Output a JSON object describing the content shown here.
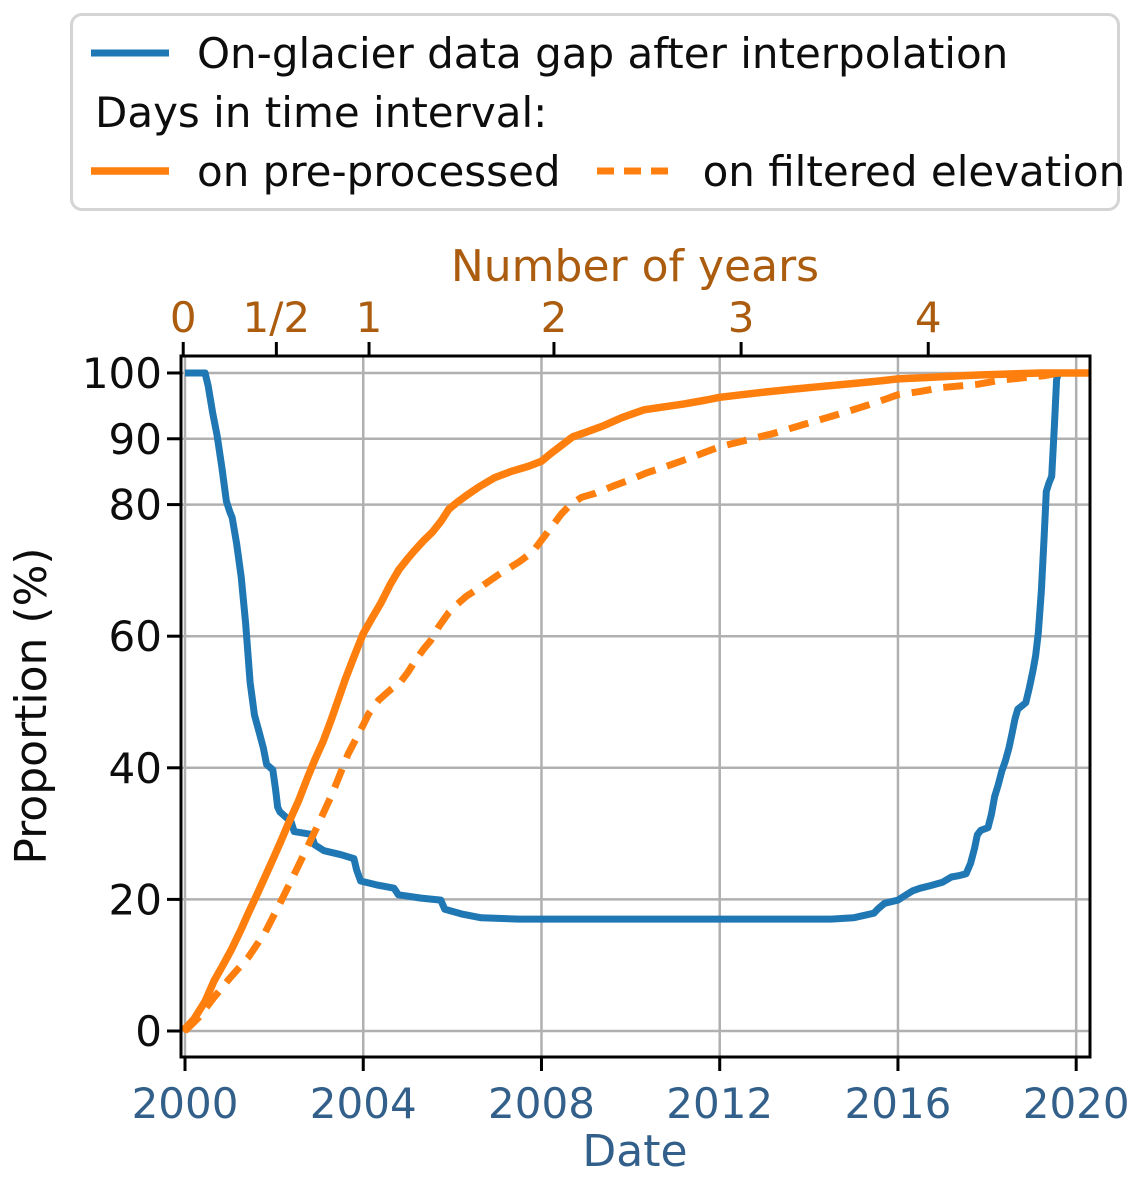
{
  "legend": {
    "items": [
      {
        "label": "On-glacier data gap after interpolation",
        "color": "#1f77b4",
        "line": "solid"
      },
      {
        "label": "Days in time interval:",
        "color": null,
        "line": "none"
      },
      {
        "label": "on pre-processed",
        "color": "#ff7f0e",
        "line": "solid"
      },
      {
        "label": "on filtered elevation",
        "color": "#ff7f0e",
        "line": "dashed"
      }
    ]
  },
  "chart_data": {
    "type": "line",
    "title": "",
    "xlabel": "Date",
    "ylabel": "Proportion (%)",
    "top_xlabel": "Number of years",
    "grid": true,
    "grid_color": "#b0b0b0",
    "frame_color": "#000000",
    "x_axis_label_color": "#33608a",
    "top_axis_label_color": "#ab5c0e",
    "y_axis_label_color": "#0d0d0d",
    "legend_position": "upper left, above axes",
    "x_range": [
      1999.91,
      2020.31
    ],
    "y_range": [
      -3.95,
      102.58
    ],
    "x_ticks": [
      {
        "label": "2000",
        "year": 2000
      },
      {
        "label": "2004",
        "year": 2004
      },
      {
        "label": "2008",
        "year": 2008
      },
      {
        "label": "2012",
        "year": 2012
      },
      {
        "label": "2016",
        "year": 2016
      },
      {
        "label": "2020",
        "year": 2020
      }
    ],
    "y_ticks": [
      {
        "label": "0",
        "value": 0
      },
      {
        "label": "20",
        "value": 20
      },
      {
        "label": "40",
        "value": 40
      },
      {
        "label": "60",
        "value": 60
      },
      {
        "label": "80",
        "value": 80
      },
      {
        "label": "90",
        "value": 90
      },
      {
        "label": "100",
        "value": 100
      }
    ],
    "top_ticks": [
      {
        "label": "0",
        "year": 1999.96
      },
      {
        "label": "1/2",
        "year": 2002.05
      },
      {
        "label": "1",
        "year": 2004.13
      },
      {
        "label": "2",
        "year": 2008.28
      },
      {
        "label": "3",
        "year": 2012.48
      },
      {
        "label": "4",
        "year": 2016.68
      }
    ],
    "series": [
      {
        "name": "On-glacier data gap after interpolation",
        "color": "#1f77b4",
        "dash": null,
        "width": 7,
        "points": [
          [
            2000.0,
            100
          ],
          [
            2000.45,
            100
          ],
          [
            2000.52,
            98
          ],
          [
            2000.62,
            94
          ],
          [
            2000.72,
            90.5
          ],
          [
            2000.83,
            85.5
          ],
          [
            2000.93,
            80.5
          ],
          [
            2001.0,
            79
          ],
          [
            2001.06,
            78
          ],
          [
            2001.16,
            74
          ],
          [
            2001.26,
            69
          ],
          [
            2001.36,
            62
          ],
          [
            2001.46,
            53
          ],
          [
            2001.56,
            48
          ],
          [
            2001.66,
            45.5
          ],
          [
            2001.76,
            43
          ],
          [
            2001.83,
            40.5
          ],
          [
            2001.97,
            39.7
          ],
          [
            2002.03,
            36.8
          ],
          [
            2002.08,
            34
          ],
          [
            2002.13,
            33.3
          ],
          [
            2002.38,
            31.8
          ],
          [
            2002.45,
            30.3
          ],
          [
            2002.83,
            29.9
          ],
          [
            2002.91,
            28.3
          ],
          [
            2003.12,
            27.4
          ],
          [
            2003.5,
            26.8
          ],
          [
            2003.79,
            26.2
          ],
          [
            2003.85,
            24.5
          ],
          [
            2003.94,
            22.8
          ],
          [
            2004.3,
            22.2
          ],
          [
            2004.69,
            21.7
          ],
          [
            2004.79,
            20.7
          ],
          [
            2005.3,
            20.2
          ],
          [
            2005.74,
            19.9
          ],
          [
            2005.83,
            18.5
          ],
          [
            2006.2,
            17.8
          ],
          [
            2006.65,
            17.2
          ],
          [
            2007.5,
            17
          ],
          [
            2011.0,
            17
          ],
          [
            2014.5,
            17
          ],
          [
            2015.0,
            17.2
          ],
          [
            2015.46,
            17.9
          ],
          [
            2015.56,
            18.6
          ],
          [
            2015.7,
            19.4
          ],
          [
            2016.0,
            19.9
          ],
          [
            2016.16,
            20.6
          ],
          [
            2016.33,
            21.3
          ],
          [
            2016.5,
            21.7
          ],
          [
            2016.73,
            22.1
          ],
          [
            2017.0,
            22.6
          ],
          [
            2017.2,
            23.4
          ],
          [
            2017.36,
            23.6
          ],
          [
            2017.53,
            23.9
          ],
          [
            2017.63,
            25.5
          ],
          [
            2017.72,
            27.8
          ],
          [
            2017.78,
            29.8
          ],
          [
            2017.86,
            30.5
          ],
          [
            2018.02,
            30.9
          ],
          [
            2018.1,
            33
          ],
          [
            2018.17,
            35.6
          ],
          [
            2018.25,
            37.4
          ],
          [
            2018.33,
            39.5
          ],
          [
            2018.41,
            41
          ],
          [
            2018.49,
            43
          ],
          [
            2018.56,
            45.2
          ],
          [
            2018.63,
            47.5
          ],
          [
            2018.69,
            48.9
          ],
          [
            2018.78,
            49.4
          ],
          [
            2018.87,
            49.9
          ],
          [
            2018.95,
            52.2
          ],
          [
            2019.03,
            54.8
          ],
          [
            2019.09,
            57
          ],
          [
            2019.15,
            60.5
          ],
          [
            2019.22,
            67
          ],
          [
            2019.28,
            75
          ],
          [
            2019.33,
            82
          ],
          [
            2019.39,
            83.3
          ],
          [
            2019.45,
            84.3
          ],
          [
            2019.51,
            92
          ],
          [
            2019.56,
            99
          ],
          [
            2019.6,
            100
          ],
          [
            2020.31,
            100
          ]
        ]
      },
      {
        "name": "Days in time interval: on pre-processed",
        "color": "#ff7f0e",
        "dash": null,
        "width": 7.5,
        "points": [
          [
            1999.95,
            0
          ],
          [
            2000.2,
            1.8
          ],
          [
            2000.45,
            4.5
          ],
          [
            2000.65,
            7.6
          ],
          [
            2000.85,
            10
          ],
          [
            2001.05,
            12.5
          ],
          [
            2001.25,
            15.3
          ],
          [
            2001.42,
            17.9
          ],
          [
            2001.6,
            20.5
          ],
          [
            2001.8,
            23.5
          ],
          [
            2002.0,
            26.5
          ],
          [
            2002.16,
            29
          ],
          [
            2002.35,
            32
          ],
          [
            2002.55,
            35
          ],
          [
            2002.75,
            38.5
          ],
          [
            2002.92,
            41.3
          ],
          [
            2003.1,
            44
          ],
          [
            2003.28,
            47.3
          ],
          [
            2003.42,
            50
          ],
          [
            2003.6,
            53.5
          ],
          [
            2003.8,
            57
          ],
          [
            2004.0,
            60.4
          ],
          [
            2004.2,
            62.8
          ],
          [
            2004.4,
            65.1
          ],
          [
            2004.6,
            67.8
          ],
          [
            2004.8,
            70.1
          ],
          [
            2005.0,
            71.8
          ],
          [
            2005.15,
            73
          ],
          [
            2005.35,
            74.5
          ],
          [
            2005.55,
            75.8
          ],
          [
            2005.75,
            77.5
          ],
          [
            2005.92,
            79.3
          ],
          [
            2006.1,
            80.3
          ],
          [
            2006.3,
            81.3
          ],
          [
            2006.6,
            82.7
          ],
          [
            2006.95,
            84.1
          ],
          [
            2007.3,
            85
          ],
          [
            2007.7,
            85.8
          ],
          [
            2008.0,
            86.6
          ],
          [
            2008.2,
            87.7
          ],
          [
            2008.45,
            89
          ],
          [
            2008.7,
            90.3
          ],
          [
            2009.0,
            91
          ],
          [
            2009.4,
            92
          ],
          [
            2009.8,
            93.2
          ],
          [
            2010.3,
            94.4
          ],
          [
            2010.7,
            94.8
          ],
          [
            2011.2,
            95.3
          ],
          [
            2011.7,
            95.9
          ],
          [
            2012.0,
            96.3
          ],
          [
            2012.5,
            96.7
          ],
          [
            2013.0,
            97.1
          ],
          [
            2013.6,
            97.5
          ],
          [
            2014.2,
            97.9
          ],
          [
            2015.0,
            98.4
          ],
          [
            2015.6,
            98.8
          ],
          [
            2016.0,
            99.1
          ],
          [
            2016.6,
            99.3
          ],
          [
            2017.2,
            99.5
          ],
          [
            2017.8,
            99.7
          ],
          [
            2018.5,
            99.85
          ],
          [
            2019.2,
            100
          ],
          [
            2020.31,
            100
          ]
        ]
      },
      {
        "name": "Days in time interval: on filtered elevation",
        "color": "#ff7f0e",
        "dash": [
          20,
          12
        ],
        "width": 7,
        "points": [
          [
            2000.0,
            0
          ],
          [
            2000.3,
            2
          ],
          [
            2000.65,
            5.1
          ],
          [
            2001.0,
            8
          ],
          [
            2001.42,
            11.2
          ],
          [
            2001.8,
            15
          ],
          [
            2002.16,
            19.8
          ],
          [
            2002.5,
            24.5
          ],
          [
            2002.92,
            30.4
          ],
          [
            2003.3,
            36
          ],
          [
            2003.66,
            42.1
          ],
          [
            2004.0,
            46.5
          ],
          [
            2004.12,
            48.2
          ],
          [
            2004.35,
            50.3
          ],
          [
            2004.6,
            51.8
          ],
          [
            2004.82,
            52.9
          ],
          [
            2005.0,
            54.5
          ],
          [
            2005.17,
            56.3
          ],
          [
            2005.35,
            58
          ],
          [
            2005.52,
            59.4
          ],
          [
            2005.7,
            61.5
          ],
          [
            2005.92,
            63.6
          ],
          [
            2006.1,
            64.8
          ],
          [
            2006.3,
            66
          ],
          [
            2006.62,
            67.4
          ],
          [
            2007.0,
            69.2
          ],
          [
            2007.5,
            71.3
          ],
          [
            2007.8,
            72.8
          ],
          [
            2008.0,
            74.6
          ],
          [
            2008.25,
            76.8
          ],
          [
            2008.45,
            78.6
          ],
          [
            2008.65,
            80
          ],
          [
            2008.9,
            81.1
          ],
          [
            2009.2,
            81.7
          ],
          [
            2009.6,
            82.8
          ],
          [
            2010.0,
            83.8
          ],
          [
            2010.35,
            84.8
          ],
          [
            2010.8,
            85.8
          ],
          [
            2011.3,
            87
          ],
          [
            2012.0,
            88.8
          ],
          [
            2012.6,
            89.8
          ],
          [
            2013.2,
            90.8
          ],
          [
            2014.0,
            92.4
          ],
          [
            2014.8,
            94
          ],
          [
            2015.5,
            95.5
          ],
          [
            2016.0,
            96.7
          ],
          [
            2016.5,
            97.2
          ],
          [
            2017.0,
            97.8
          ],
          [
            2017.8,
            98.3
          ],
          [
            2018.3,
            98.9
          ],
          [
            2019.0,
            99.4
          ],
          [
            2019.3,
            99.6
          ],
          [
            2019.6,
            100
          ],
          [
            2020.31,
            100
          ]
        ]
      }
    ]
  }
}
